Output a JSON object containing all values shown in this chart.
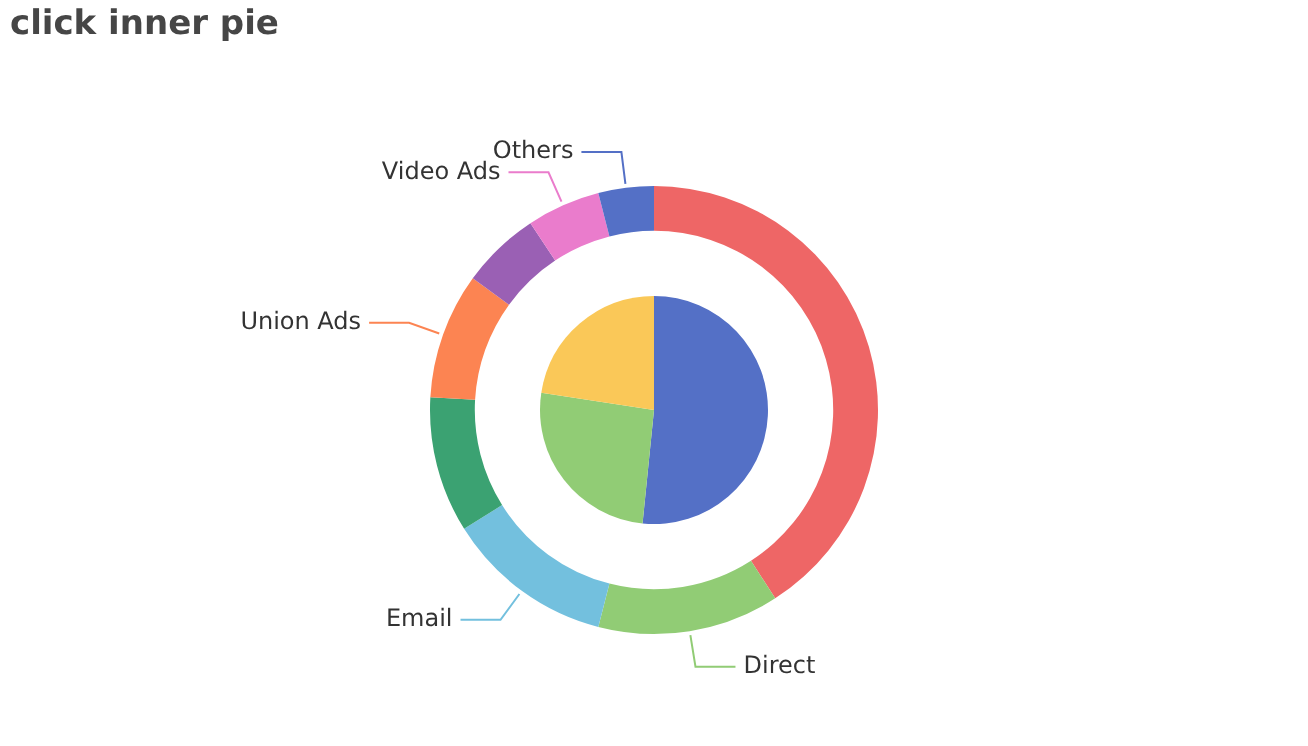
{
  "chart_data": [
    {
      "type": "donut",
      "title": "click inner pie",
      "legend": false,
      "categories": [
        null,
        "Direct",
        "Email",
        null,
        "Union Ads",
        null,
        "Video Ads",
        "Others"
      ],
      "values": [
        40.9,
        13.1,
        12.1,
        9.8,
        9.1,
        5.7,
        5.3,
        4.0
      ],
      "colors": [
        "#ee6666",
        "#91cc75",
        "#73c0de",
        "#3ba272",
        "#fc8452",
        "#9a60b4",
        "#ea7ccc",
        "#5470c6"
      ]
    },
    {
      "type": "pie",
      "legend": false,
      "categories": [
        null,
        null,
        null
      ],
      "values": [
        51.6,
        25.8,
        22.6
      ],
      "colors": [
        "#5470c6",
        "#91cc75",
        "#fac858"
      ]
    }
  ]
}
